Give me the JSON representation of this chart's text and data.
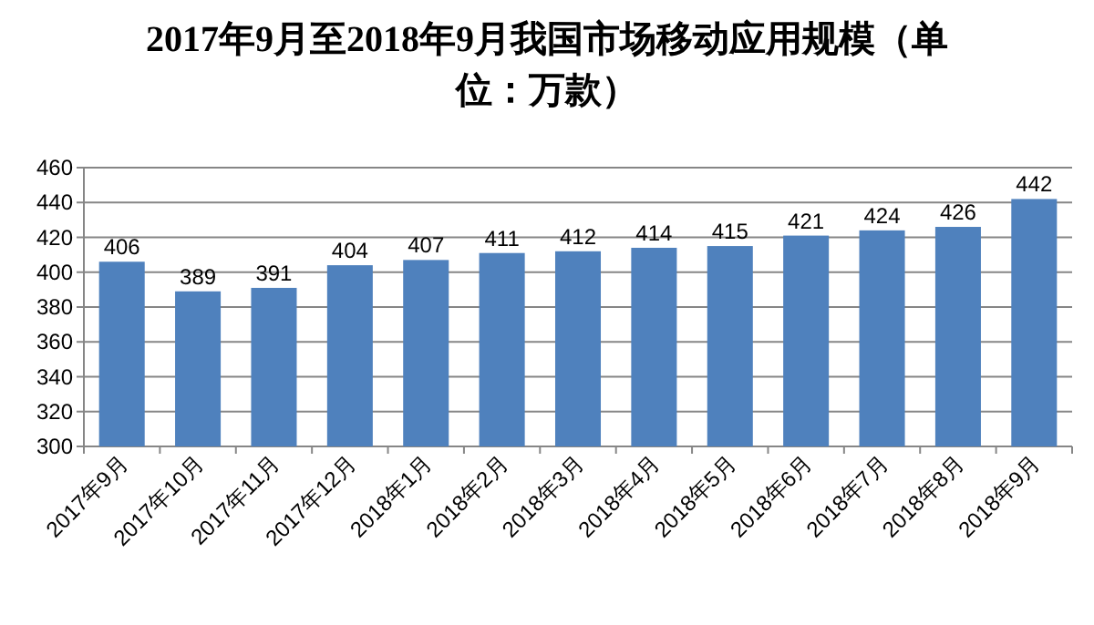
{
  "chart_data": {
    "type": "bar",
    "title": "2017年9月至2018年9月我国市场移动应用规模（单位：万款）",
    "categories": [
      "2017年9月",
      "2017年10月",
      "2017年11月",
      "2017年12月",
      "2018年1月",
      "2018年2月",
      "2018年3月",
      "2018年4月",
      "2018年5月",
      "2018年6月",
      "2018年7月",
      "2018年8月",
      "2018年9月"
    ],
    "values": [
      406,
      389,
      391,
      404,
      407,
      411,
      412,
      414,
      415,
      421,
      424,
      426,
      442
    ],
    "color": "#4f81bd",
    "ylim": [
      300,
      460
    ],
    "yticks": [
      300,
      320,
      340,
      360,
      380,
      400,
      420,
      440,
      460
    ],
    "grid": "y",
    "data_labels": true
  }
}
